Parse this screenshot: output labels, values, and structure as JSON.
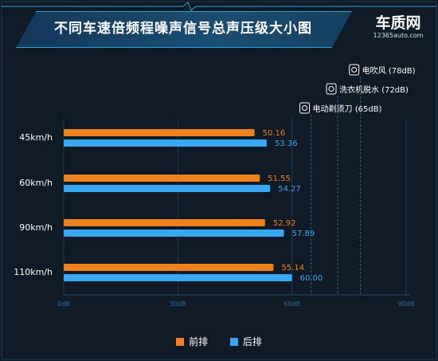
{
  "title": "不同车速倍频程噪声信号总声压级大小图",
  "logo": {
    "main": "车质网",
    "sub": "12365auto.com"
  },
  "colors": {
    "front": "#f0821e",
    "rear": "#39a8f2",
    "ref": "#3a5a7a",
    "background": "#0f1a26"
  },
  "references": [
    {
      "label": "电吹风 (78dB)",
      "value": 78,
      "icon": "hair-dryer-icon"
    },
    {
      "label": "洗衣机脱水 (72dB)",
      "value": 72,
      "icon": "washing-machine-icon"
    },
    {
      "label": "电动剃须刀 (65dB)",
      "value": 65,
      "icon": "electric-shaver-icon"
    }
  ],
  "legend": {
    "front_label": "前排",
    "rear_label": "后排"
  },
  "chart_data": {
    "type": "bar",
    "orientation": "horizontal",
    "categories": [
      "45km/h",
      "60km/h",
      "90km/h",
      "110km/h"
    ],
    "series": [
      {
        "name": "前排",
        "values": [
          50.16,
          51.55,
          52.92,
          55.14
        ]
      },
      {
        "name": "后排",
        "values": [
          53.36,
          54.27,
          57.89,
          60.0
        ]
      }
    ],
    "value_labels": [
      [
        "50.16",
        "51.55",
        "52.92",
        "55.14"
      ],
      [
        "53.36",
        "54.27",
        "57.89",
        "60.00"
      ]
    ],
    "xlim": [
      0,
      90
    ],
    "xticks": [
      "0dB",
      "30dB",
      "60dB",
      "90dB"
    ],
    "title": "不同车速倍频程噪声信号总声压级大小图",
    "legend_position": "bottom"
  }
}
